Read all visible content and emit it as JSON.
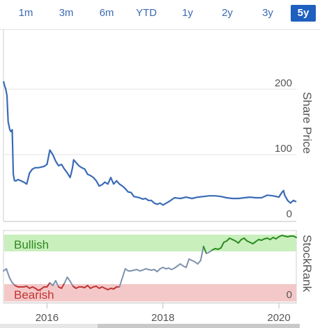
{
  "range_selector": {
    "options": [
      "1m",
      "3m",
      "6m",
      "YTD",
      "1y",
      "2y",
      "3y",
      "5y"
    ],
    "selected": "5y"
  },
  "chart_data": [
    {
      "type": "line",
      "ylabel": "Share Price",
      "ylim": [
        0,
        240
      ],
      "yticks": [
        "200",
        "100",
        "0"
      ],
      "ytick_values": [
        200,
        100,
        0
      ],
      "xlim": [
        2015.25,
        2020.3
      ],
      "line_color": "#3a6bb5",
      "x": [
        2015.25,
        2015.27,
        2015.29,
        2015.31,
        2015.33,
        2015.36,
        2015.38,
        2015.4,
        2015.42,
        2015.44,
        2015.47,
        2015.5,
        2015.55,
        2015.6,
        2015.65,
        2015.7,
        2015.75,
        2015.8,
        2015.85,
        2015.9,
        2015.95,
        2016.0,
        2016.05,
        2016.1,
        2016.15,
        2016.2,
        2016.25,
        2016.3,
        2016.35,
        2016.4,
        2016.42,
        2016.44,
        2016.46,
        2016.5,
        2016.55,
        2016.6,
        2016.65,
        2016.7,
        2016.75,
        2016.8,
        2016.85,
        2016.9,
        2016.95,
        2017.0,
        2017.05,
        2017.1,
        2017.15,
        2017.2,
        2017.25,
        2017.3,
        2017.35,
        2017.4,
        2017.45,
        2017.5,
        2017.55,
        2017.6,
        2017.65,
        2017.7,
        2017.75,
        2017.8,
        2017.85,
        2017.9,
        2017.95,
        2018.0,
        2018.1,
        2018.2,
        2018.3,
        2018.4,
        2018.5,
        2018.6,
        2018.7,
        2018.8,
        2018.9,
        2019.0,
        2019.1,
        2019.2,
        2019.3,
        2019.4,
        2019.5,
        2019.6,
        2019.7,
        2019.8,
        2019.9,
        2020.0,
        2020.05,
        2020.08,
        2020.1,
        2020.15,
        2020.2,
        2020.25,
        2020.3
      ],
      "y": [
        212,
        205,
        200,
        190,
        150,
        138,
        135,
        138,
        70,
        60,
        60,
        62,
        60,
        58,
        55,
        72,
        78,
        80,
        80,
        81,
        82,
        85,
        107,
        100,
        90,
        83,
        85,
        78,
        72,
        65,
        72,
        80,
        92,
        88,
        83,
        80,
        78,
        70,
        68,
        65,
        60,
        52,
        54,
        58,
        55,
        65,
        55,
        60,
        55,
        52,
        48,
        43,
        42,
        36,
        35,
        34,
        32,
        33,
        30,
        30,
        26,
        24,
        26,
        23,
        28,
        34,
        33,
        35,
        33,
        35,
        36,
        37,
        37,
        36,
        34,
        33,
        33,
        34,
        35,
        34,
        34,
        38,
        37,
        35,
        42,
        45,
        38,
        30,
        26,
        30,
        28
      ]
    },
    {
      "type": "line",
      "ylabel": "StockRank",
      "ylim": [
        0,
        100
      ],
      "yticks": [
        "0"
      ],
      "ytick_values": [
        0
      ],
      "xlim": [
        2015.25,
        2020.3
      ],
      "xticks": [
        "2016",
        "2018",
        "2020"
      ],
      "xtick_values": [
        2016,
        2018,
        2020
      ],
      "bands": [
        {
          "label": "Bullish",
          "from": 75,
          "to": 100,
          "color": "#c8efbc",
          "text_color": "#2d8a1e"
        },
        {
          "label": "Bearish",
          "from": 0,
          "to": 25,
          "color": "#f4c8c8",
          "text_color": "#c23434"
        }
      ],
      "segment_colors": {
        "bearish": "#c23434",
        "neutral": "#7f92ad",
        "bullish": "#2a8a1f"
      },
      "x": [
        2015.25,
        2015.3,
        2015.35,
        2015.4,
        2015.45,
        2015.5,
        2015.55,
        2015.6,
        2015.65,
        2015.7,
        2015.75,
        2015.8,
        2015.85,
        2015.9,
        2015.95,
        2016.0,
        2016.05,
        2016.1,
        2016.15,
        2016.2,
        2016.25,
        2016.3,
        2016.35,
        2016.4,
        2016.45,
        2016.5,
        2016.55,
        2016.6,
        2016.65,
        2016.7,
        2016.75,
        2016.8,
        2016.85,
        2016.9,
        2016.95,
        2017.0,
        2017.05,
        2017.1,
        2017.15,
        2017.2,
        2017.25,
        2017.3,
        2017.35,
        2017.4,
        2017.45,
        2017.5,
        2017.55,
        2017.6,
        2017.65,
        2017.7,
        2017.75,
        2017.8,
        2017.85,
        2017.9,
        2017.95,
        2018.0,
        2018.05,
        2018.1,
        2018.15,
        2018.2,
        2018.25,
        2018.3,
        2018.35,
        2018.4,
        2018.45,
        2018.5,
        2018.55,
        2018.6,
        2018.65,
        2018.7,
        2018.75,
        2018.8,
        2018.85,
        2018.9,
        2018.95,
        2019.0,
        2019.05,
        2019.1,
        2019.15,
        2019.2,
        2019.25,
        2019.3,
        2019.35,
        2019.4,
        2019.45,
        2019.5,
        2019.55,
        2019.6,
        2019.65,
        2019.7,
        2019.75,
        2019.8,
        2019.85,
        2019.9,
        2019.95,
        2020.0,
        2020.05,
        2020.1,
        2020.15,
        2020.2,
        2020.25,
        2020.3
      ],
      "y": [
        45,
        48,
        36,
        28,
        24,
        22,
        22,
        22,
        23,
        20,
        22,
        20,
        17,
        19,
        22,
        22,
        28,
        24,
        31,
        22,
        20,
        27,
        36,
        30,
        23,
        20,
        22,
        22,
        21,
        24,
        20,
        22,
        23,
        20,
        22,
        20,
        18,
        20,
        19,
        22,
        22,
        35,
        48,
        45,
        45,
        46,
        47,
        45,
        46,
        48,
        47,
        46,
        47,
        44,
        48,
        50,
        48,
        49,
        47,
        49,
        52,
        55,
        52,
        50,
        62,
        60,
        58,
        55,
        60,
        80,
        70,
        72,
        75,
        77,
        76,
        78,
        86,
        88,
        92,
        90,
        88,
        85,
        90,
        92,
        88,
        86,
        84,
        87,
        90,
        89,
        91,
        92,
        90,
        93,
        91,
        94,
        96,
        95,
        94,
        95,
        95,
        93
      ]
    }
  ]
}
